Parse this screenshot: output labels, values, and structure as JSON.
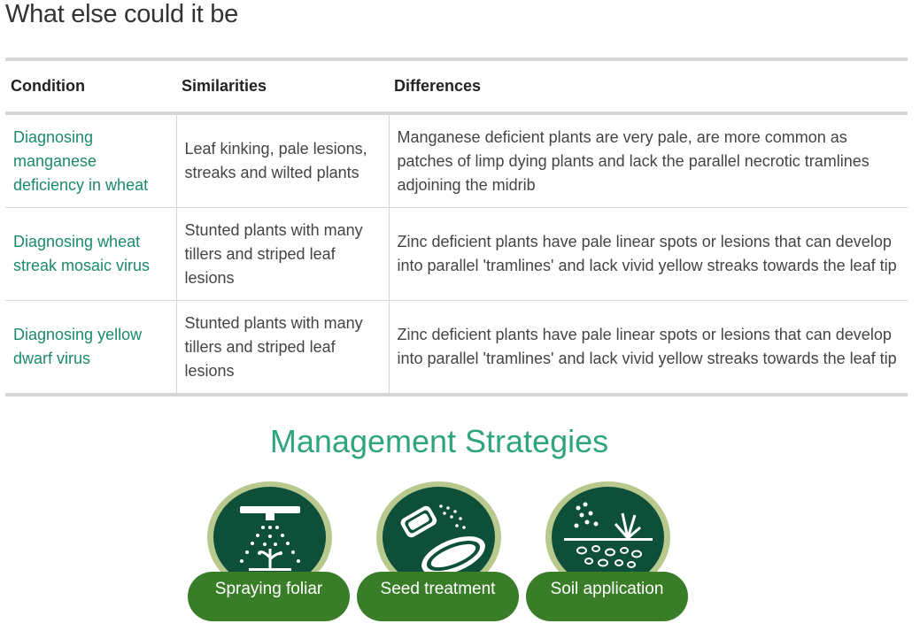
{
  "page": {
    "title": "What else could it be"
  },
  "table": {
    "headers": [
      "Condition",
      "Similarities",
      "Differences"
    ],
    "rows": [
      {
        "condition": "Diagnosing manganese deficiency in wheat",
        "similarities": "Leaf kinking, pale lesions, streaks and wilted plants",
        "differences": "Manganese deficient plants are very pale, are more common as patches of limp dying plants and lack the parallel necrotic tramlines adjoining the midrib"
      },
      {
        "condition": "Diagnosing wheat streak mosaic virus",
        "similarities": "Stunted plants with many tillers and striped leaf lesions",
        "differences": "Zinc deficient plants have pale linear spots or lesions that can develop into parallel 'tramlines' and lack vivid yellow streaks towards the leaf tip"
      },
      {
        "condition": "Diagnosing yellow dwarf virus",
        "similarities": "Stunted plants with many tillers and striped leaf lesions",
        "differences": "Zinc deficient plants have pale linear spots or lesions that can develop into parallel 'tramlines' and lack vivid yellow streaks towards the leaf tip"
      }
    ]
  },
  "management": {
    "title": "Management Strategies",
    "strategies": [
      {
        "label": "Spraying foliar",
        "icon": "sprayer-icon"
      },
      {
        "label": "Seed treatment",
        "icon": "seed-icon"
      },
      {
        "label": "Soil application",
        "icon": "soil-icon"
      }
    ]
  },
  "colors": {
    "link": "#1b8a6b",
    "heading_green": "#2fa57a",
    "pill_green": "#3a7d28",
    "disc_dark": "#0e4f3a",
    "disc_ring": "#b9c98e"
  }
}
